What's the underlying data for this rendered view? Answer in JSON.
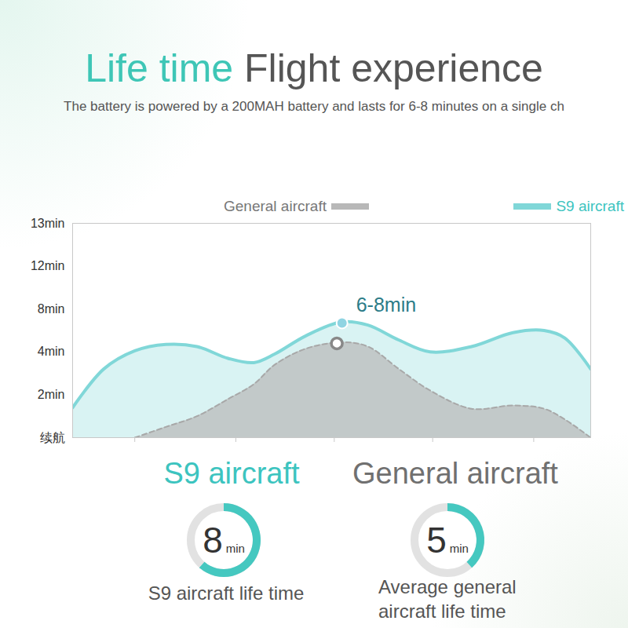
{
  "header": {
    "title_highlight": "Life time",
    "title": "Flight experience",
    "subtitle": "The battery is powered by a 200MAH battery and lasts for 6-8 minutes on a single ch"
  },
  "chart_data": {
    "type": "area",
    "x": [
      0,
      6,
      12,
      18,
      24,
      30,
      35,
      39,
      45,
      52,
      57,
      63,
      69,
      77,
      85,
      91,
      95,
      100
    ],
    "xlim": [
      0,
      100
    ],
    "xticks": [
      12,
      31.5,
      50.5,
      69.5,
      89
    ],
    "ylim": [
      0,
      13
    ],
    "yticks": [
      {
        "value": 0,
        "label": "续航"
      },
      {
        "value": 2,
        "label": "2min"
      },
      {
        "value": 4,
        "label": "4min"
      },
      {
        "value": 8,
        "label": "8min"
      },
      {
        "value": 12,
        "label": "12min"
      },
      {
        "value": 13,
        "label": "13min"
      }
    ],
    "tick_labels": "y",
    "grid": false,
    "legend": "top",
    "series": [
      {
        "name": "General aircraft",
        "color": "#b8b8b8",
        "line_style": "dashed",
        "marker": "open_circle",
        "highlight": {
          "x": 51,
          "y": 4.8
        },
        "values": [
          null,
          null,
          0,
          0.5,
          1.0,
          1.8,
          2.5,
          3.4,
          4.3,
          4.9,
          4.5,
          3.2,
          2.2,
          1.35,
          1.5,
          1.35,
          0.85,
          0
        ]
      },
      {
        "name": "S9 aircraft",
        "color": "#80d7d8",
        "line_style": "solid",
        "marker": "circle",
        "highlight": {
          "x": 52,
          "y": 6.7
        },
        "values": [
          1.4,
          3.2,
          4.1,
          4.7,
          4.5,
          3.7,
          3.5,
          3.9,
          5.5,
          6.8,
          6.5,
          5.1,
          4.0,
          4.5,
          5.8,
          6.0,
          5.3,
          3.2
        ]
      }
    ],
    "annotations": [
      {
        "text": "6-8min",
        "x": 52,
        "y": 6.7
      }
    ]
  },
  "gauges": [
    {
      "name": "S9 aircraft",
      "value": 8,
      "unit": "min",
      "caption": "S9 aircraft life time",
      "color": "#45c8c0"
    },
    {
      "name": "General aircraft",
      "value": 5,
      "unit": "min",
      "caption": "Average general aircraft life time",
      "color": "#45c8c0"
    }
  ]
}
